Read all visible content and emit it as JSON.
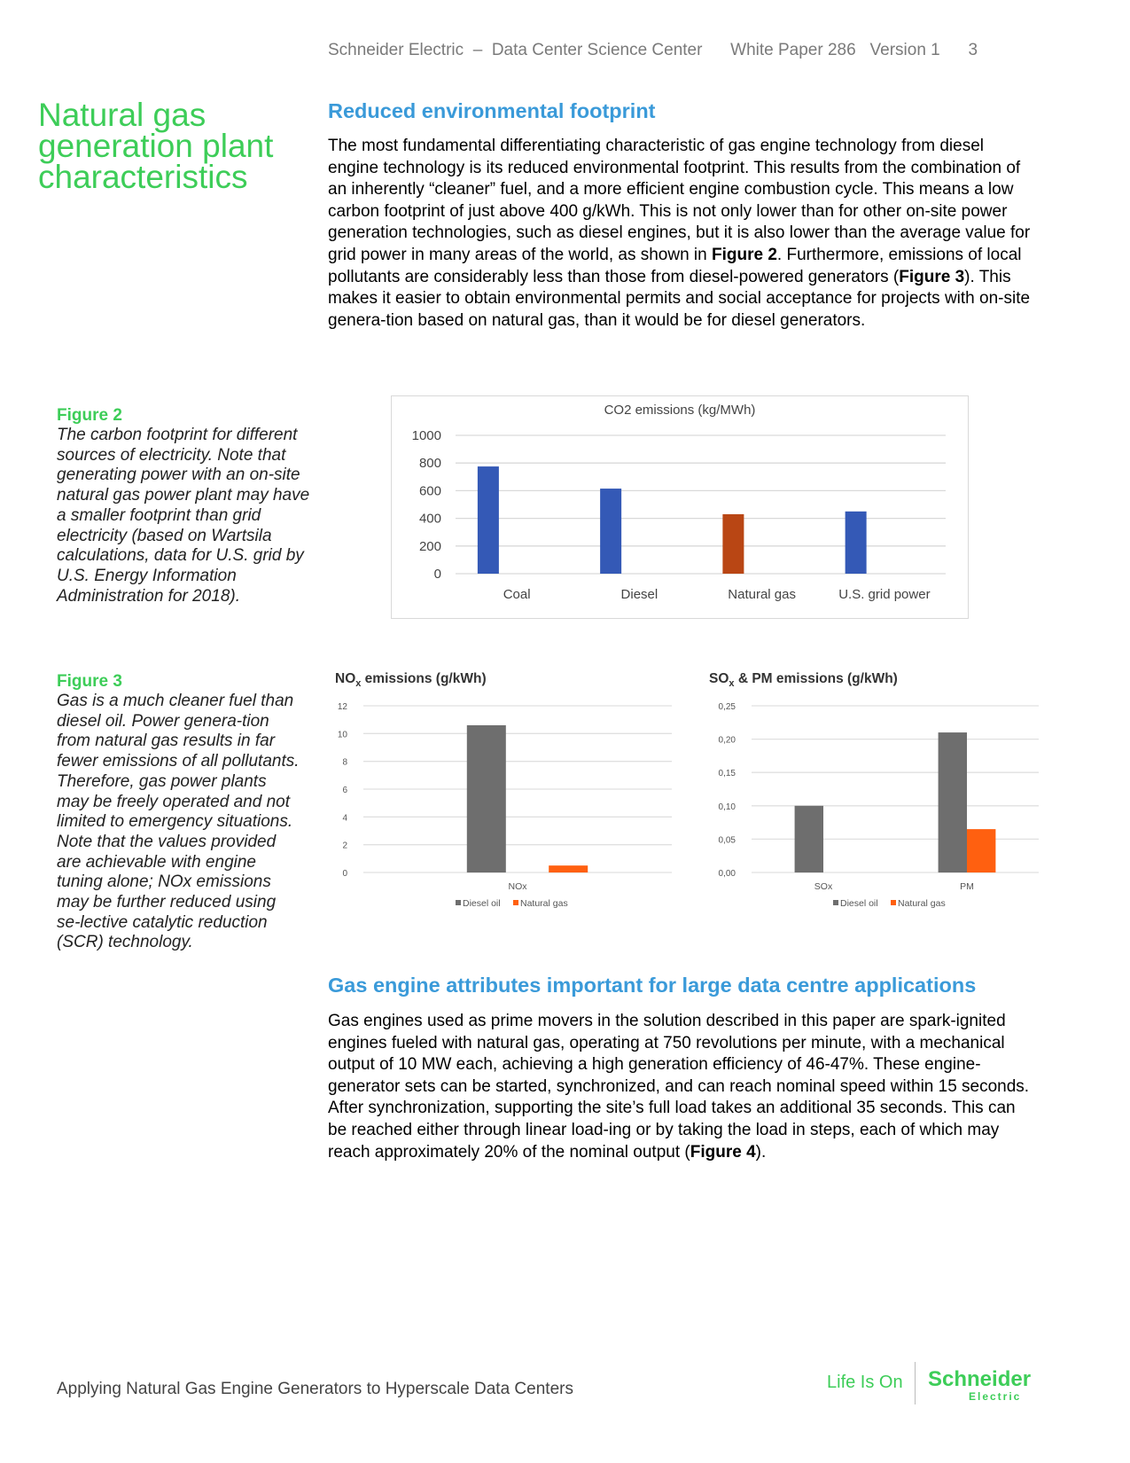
{
  "header": {
    "company": "Schneider Electric",
    "sep": "–",
    "center": "Data Center Science Center",
    "paper": "White Paper 286",
    "version": "Version 1",
    "page": "3"
  },
  "side_title": "Natural gas generation plant characteristics",
  "section1": {
    "heading": "Reduced environmental footprint",
    "p1": "The most fundamental differentiating characteristic of gas engine technology from diesel engine technology is its reduced environmental footprint. This results from the combination of an inherently “cleaner” fuel, and a more efficient engine combustion cycle. This means a low carbon footprint of just above 400 g/kWh. This is not only lower than for other on-site power generation technologies, such as diesel engines, but it is also lower than the average value for grid power in many areas of the world, as shown in ",
    "ref1": "Figure 2",
    "p2": ". Furthermore, emissions of local pollutants are considerably less than those from diesel-powered generators (",
    "ref2": "Figure 3",
    "p3": "). This makes it easier to obtain environmental permits and social acceptance for projects with on-site genera-tion based on natural gas, than it would be for diesel generators."
  },
  "figure2": {
    "label": "Figure 2",
    "caption": "The carbon footprint for different sources of electricity. Note that generating power with an on-site natural gas power plant may have a smaller footprint than grid electricity (based on Wartsila calculations, data for U.S. grid by U.S. Energy Information Administration for 2018)."
  },
  "figure3": {
    "label": "Figure 3",
    "caption": "Gas is a much cleaner fuel than diesel oil. Power genera-tion from natural gas results in far fewer emissions of all pollutants. Therefore, gas power plants may be freely operated and not limited to emergency situations. Note that the values provided are achievable with engine tuning alone; NOx emissions may be further reduced using se-lective catalytic reduction (SCR) technology."
  },
  "section2": {
    "heading": "Gas engine attributes important for large data centre applications",
    "p1": "Gas engines used as prime movers in the solution described in this paper are spark-ignited engines fueled with natural gas, operating at 750 revolutions per minute, with a mechanical output of 10 MW each, achieving a high generation efficiency of 46-47%. These engine-generator sets can be started, synchronized, and can reach nominal speed within 15 seconds. After synchronization, supporting the site’s full load takes an additional 35 seconds. This can be reached either through linear load-ing or by taking the load in steps, each of which may reach approximately 20% of the nominal output (",
    "ref": "Figure 4",
    "p2": ")."
  },
  "footer": {
    "title": "Applying Natural Gas Engine Generators to Hyperscale Data Centers",
    "tagline": "Life Is On",
    "brand": "Schneider",
    "brand_sub": "Electric"
  },
  "colors": {
    "green": "#3dcd58",
    "blue_heading": "#3a9ad9",
    "bar_blue": "#3459b6",
    "bar_rust": "#b94614",
    "bar_grey": "#6e6e6e",
    "bar_orange": "#ff6010"
  },
  "chart_data": [
    {
      "type": "bar",
      "title": "CO2 emissions (kg/MWh)",
      "categories": [
        "Coal",
        "Diesel",
        "Natural gas",
        "U.S. grid power"
      ],
      "values": [
        775,
        615,
        430,
        450
      ],
      "ylim": [
        0,
        1000
      ],
      "yticks": [
        "0",
        "200",
        "400",
        "600",
        "800",
        "1000"
      ],
      "bar_colors": [
        "#3459b6",
        "#3459b6",
        "#b94614",
        "#3459b6"
      ],
      "grid": true
    },
    {
      "type": "bar",
      "title": "NO",
      "title_sub": "x",
      "title_rest": " emissions (g/kWh)",
      "categories": [
        "NOx"
      ],
      "series": [
        {
          "name": "Diesel oil",
          "values": [
            10.6
          ],
          "color": "#6e6e6e"
        },
        {
          "name": "Natural gas",
          "values": [
            0.5
          ],
          "color": "#ff6010"
        }
      ],
      "ylim": [
        0,
        12
      ],
      "yticks": [
        "0",
        "2",
        "4",
        "6",
        "8",
        "10",
        "12"
      ],
      "legend": "bottom",
      "grid": true
    },
    {
      "type": "bar",
      "title": "SO",
      "title_sub": "x",
      "title_rest": " & PM emissions (g/kWh)",
      "categories": [
        "SOx",
        "PM"
      ],
      "series": [
        {
          "name": "Diesel oil",
          "values": [
            0.1,
            0.21
          ],
          "color": "#6e6e6e"
        },
        {
          "name": "Natural gas",
          "values": [
            0,
            0.065
          ],
          "color": "#ff6010"
        }
      ],
      "ylim": [
        0,
        0.25
      ],
      "yticks": [
        "0,00",
        "0,05",
        "0,10",
        "0,15",
        "0,20",
        "0,25"
      ],
      "legend": "bottom",
      "grid": true
    }
  ]
}
